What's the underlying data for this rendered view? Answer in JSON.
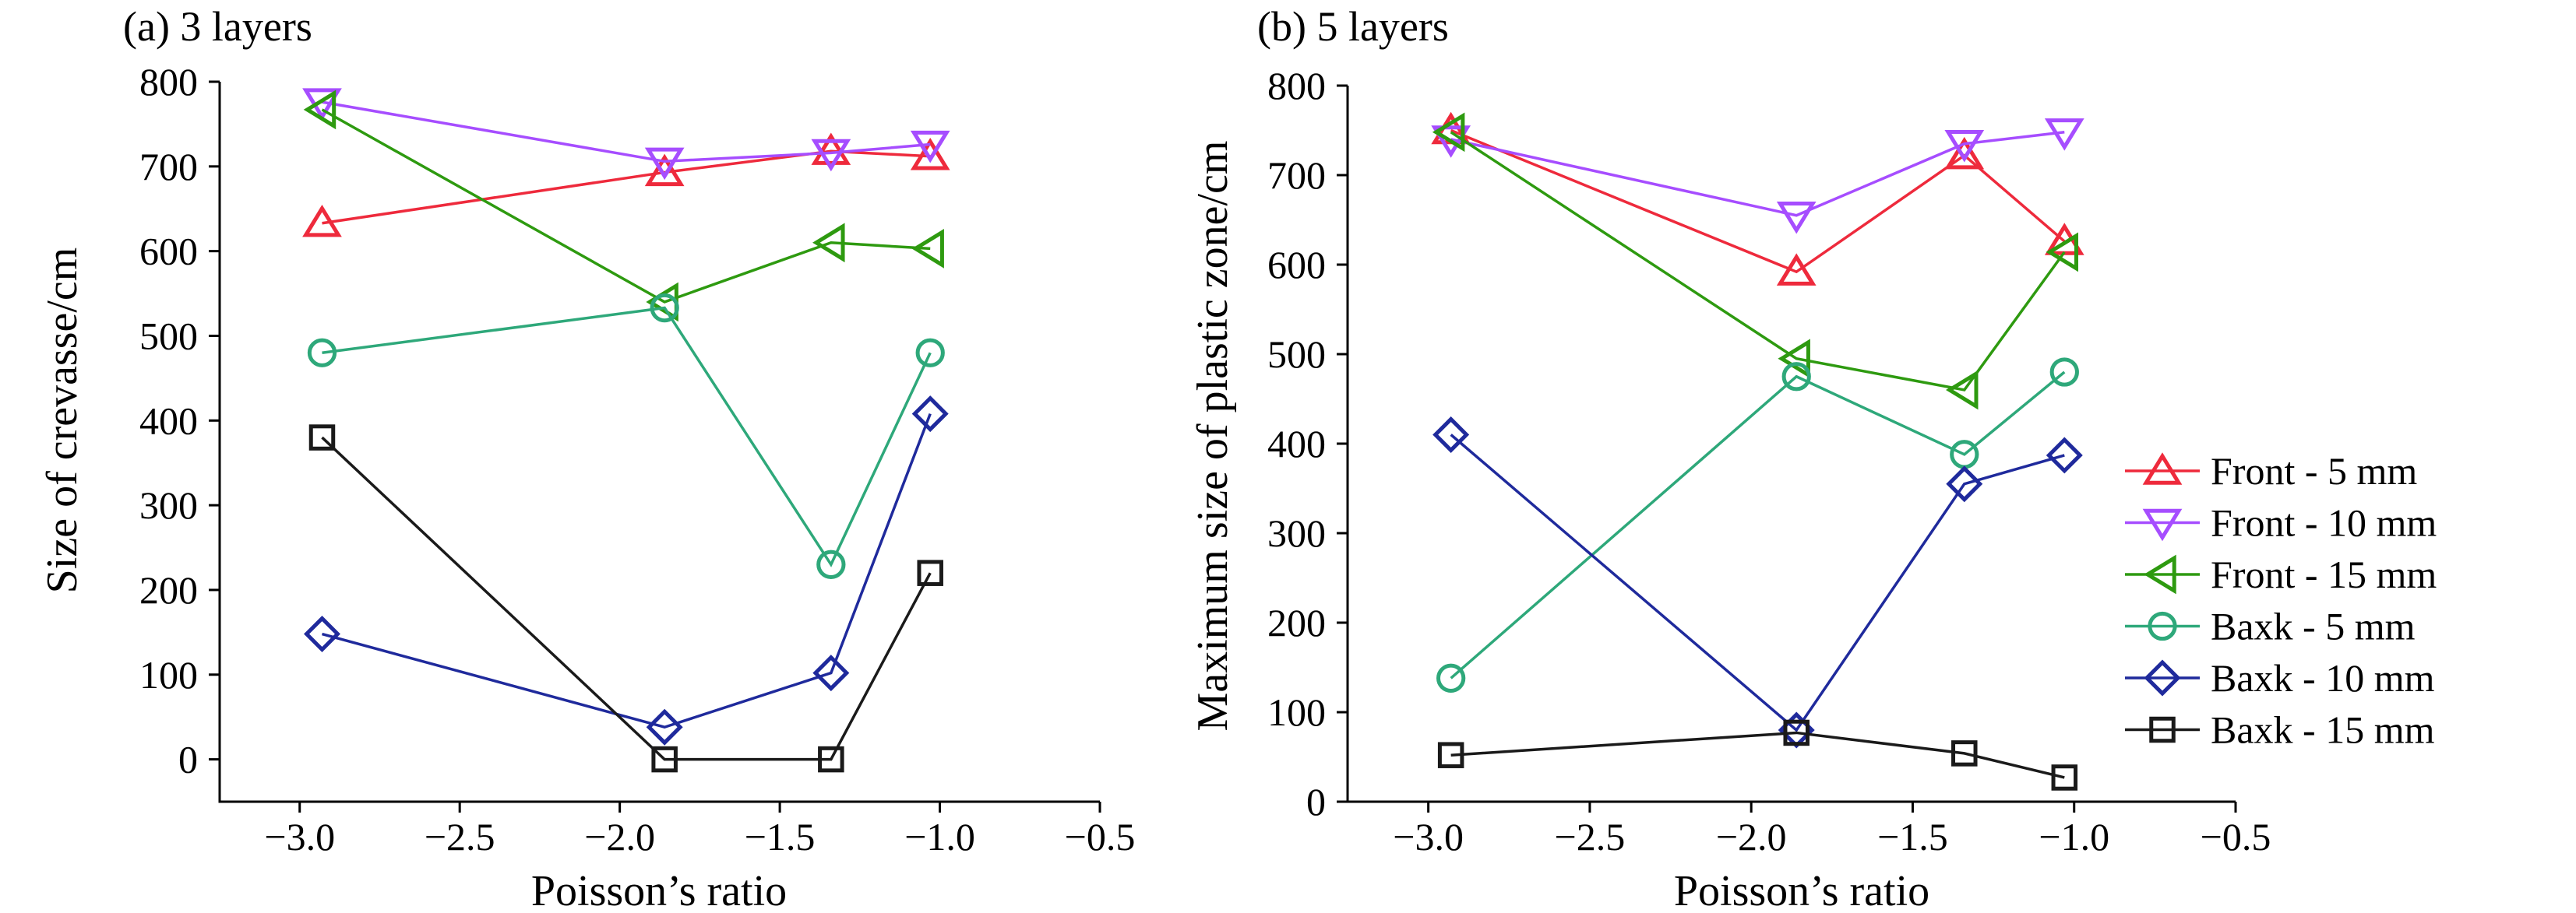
{
  "chart_data": [
    {
      "type": "line",
      "title": "(a) 3 layers",
      "xlabel": "Poisson’s ratio",
      "ylabel": "Size of crevasse/cm",
      "xlim": [
        -3.25,
        -0.5
      ],
      "ylim": [
        -50,
        800
      ],
      "xticks": [
        -3.0,
        -2.5,
        -2.0,
        -1.5,
        -1.0,
        -0.5
      ],
      "xtick_labels": [
        "−3.0",
        "−2.5",
        "−2.0",
        "−1.5",
        "−1.0",
        "−0.5"
      ],
      "yticks": [
        0,
        100,
        200,
        300,
        400,
        500,
        600,
        700,
        800
      ],
      "ytick_labels": [
        "0",
        "100",
        "200",
        "300",
        "400",
        "500",
        "600",
        "700",
        "800"
      ],
      "grid": false,
      "x": [
        -2.93,
        -1.86,
        -1.34,
        -1.03
      ],
      "series": [
        {
          "name": "Front - 5 mm",
          "values": [
            633,
            693,
            718,
            712
          ],
          "color": "#ee2a3c",
          "marker": "triangle-up"
        },
        {
          "name": "Front - 10 mm",
          "values": [
            776,
            706,
            716,
            726
          ],
          "color": "#a64dff",
          "marker": "triangle-down"
        },
        {
          "name": "Front - 15 mm",
          "values": [
            767,
            540,
            610,
            603
          ],
          "color": "#2e9a10",
          "marker": "triangle-left"
        },
        {
          "name": "Baxk - 5 mm",
          "values": [
            480,
            533,
            230,
            480
          ],
          "color": "#2ea87a",
          "marker": "circle"
        },
        {
          "name": "Baxk - 10 mm",
          "values": [
            148,
            38,
            102,
            408
          ],
          "color": "#1f2a9c",
          "marker": "diamond"
        },
        {
          "name": "Baxk - 15 mm",
          "values": [
            380,
            0,
            0,
            220
          ],
          "color": "#1a1a1a",
          "marker": "square"
        }
      ]
    },
    {
      "type": "line",
      "title": "(b) 5 layers",
      "xlabel": "Poisson’s ratio",
      "ylabel": "Maximum size of plastic zone/cm",
      "xlim": [
        -3.25,
        -0.5
      ],
      "ylim": [
        0,
        800
      ],
      "xticks": [
        -3.0,
        -2.5,
        -2.0,
        -1.5,
        -1.0,
        -0.5
      ],
      "xtick_labels": [
        "−3.0",
        "−2.5",
        "−2.0",
        "−1.5",
        "−1.0",
        "−0.5"
      ],
      "yticks": [
        0,
        100,
        200,
        300,
        400,
        500,
        600,
        700,
        800
      ],
      "ytick_labels": [
        "0",
        "100",
        "200",
        "300",
        "400",
        "500",
        "600",
        "700",
        "800"
      ],
      "grid": false,
      "legend_position": "right",
      "x": [
        -2.93,
        -1.86,
        -1.34,
        -1.03
      ],
      "series": [
        {
          "name": "Front - 5 mm",
          "values": [
            750,
            592,
            722,
            626
          ],
          "color": "#ee2a3c",
          "marker": "triangle-up"
        },
        {
          "name": "Front - 10 mm",
          "values": [
            740,
            655,
            735,
            748
          ],
          "color": "#a64dff",
          "marker": "triangle-down"
        },
        {
          "name": "Front - 15 mm",
          "values": [
            748,
            495,
            460,
            614
          ],
          "color": "#2e9a10",
          "marker": "triangle-left"
        },
        {
          "name": "Baxk - 5 mm",
          "values": [
            138,
            475,
            388,
            480
          ],
          "color": "#2ea87a",
          "marker": "circle"
        },
        {
          "name": "Baxk - 10 mm",
          "values": [
            410,
            80,
            355,
            387
          ],
          "color": "#1f2a9c",
          "marker": "diamond"
        },
        {
          "name": "Baxk - 15 mm",
          "values": [
            52,
            77,
            54,
            27
          ],
          "color": "#1a1a1a",
          "marker": "square"
        }
      ]
    }
  ]
}
